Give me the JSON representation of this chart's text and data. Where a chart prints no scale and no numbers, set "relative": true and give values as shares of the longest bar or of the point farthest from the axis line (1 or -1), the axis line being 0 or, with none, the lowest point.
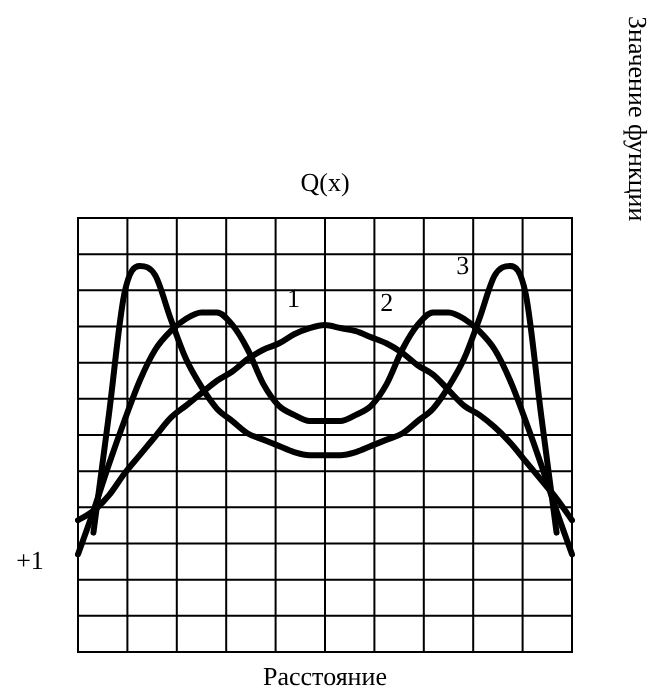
{
  "chart_data": {
    "type": "line",
    "title": "Q(x)",
    "xlabel": "Расстояние",
    "ylabel": "Значение функции",
    "annotations": [
      "+1"
    ],
    "relative": true,
    "grid": true,
    "legend": false,
    "marker": "none",
    "line_style": "solid",
    "categories": [
      null,
      null,
      null,
      null,
      null,
      null,
      null,
      null,
      null,
      null,
      null,
      null,
      null,
      null,
      null,
      null,
      null,
      null,
      null,
      null,
      null,
      null,
      null,
      null,
      null,
      null,
      null,
      null,
      null,
      null,
      null,
      null,
      null
    ],
    "series": [
      {
        "name": "1",
        "color": "#000000",
        "values": [
          0.18,
          0.21,
          0.26,
          0.33,
          0.39,
          0.45,
          0.51,
          0.55,
          0.59,
          0.63,
          0.66,
          0.7,
          0.73,
          0.75,
          0.78,
          0.8,
          0.81,
          0.8,
          0.79,
          0.77,
          0.75,
          0.72,
          0.68,
          0.65,
          0.6,
          0.55,
          0.52,
          0.48,
          0.43,
          0.37,
          0.31,
          0.25,
          0.18
        ]
      },
      {
        "name": "2",
        "color": "#000000",
        "values": [
          0.07,
          0.21,
          0.36,
          0.5,
          0.63,
          0.73,
          0.79,
          0.83,
          0.85,
          0.85,
          0.81,
          0.73,
          0.62,
          0.55,
          0.52,
          0.5,
          0.5,
          0.5,
          0.52,
          0.55,
          0.62,
          0.73,
          0.81,
          0.85,
          0.85,
          0.83,
          0.79,
          0.73,
          0.63,
          0.5,
          0.36,
          0.21,
          0.07
        ]
      },
      {
        "name": "3",
        "color": "#000000",
        "values": [
          null,
          0.14,
          0.52,
          0.91,
          1.0,
          0.97,
          0.83,
          0.7,
          0.61,
          0.54,
          0.5,
          0.46,
          0.44,
          0.42,
          0.4,
          0.39,
          0.39,
          0.39,
          0.4,
          0.42,
          0.44,
          0.46,
          0.5,
          0.54,
          0.61,
          0.7,
          0.83,
          0.97,
          1.0,
          0.91,
          0.52,
          0.14,
          null
        ]
      }
    ]
  }
}
